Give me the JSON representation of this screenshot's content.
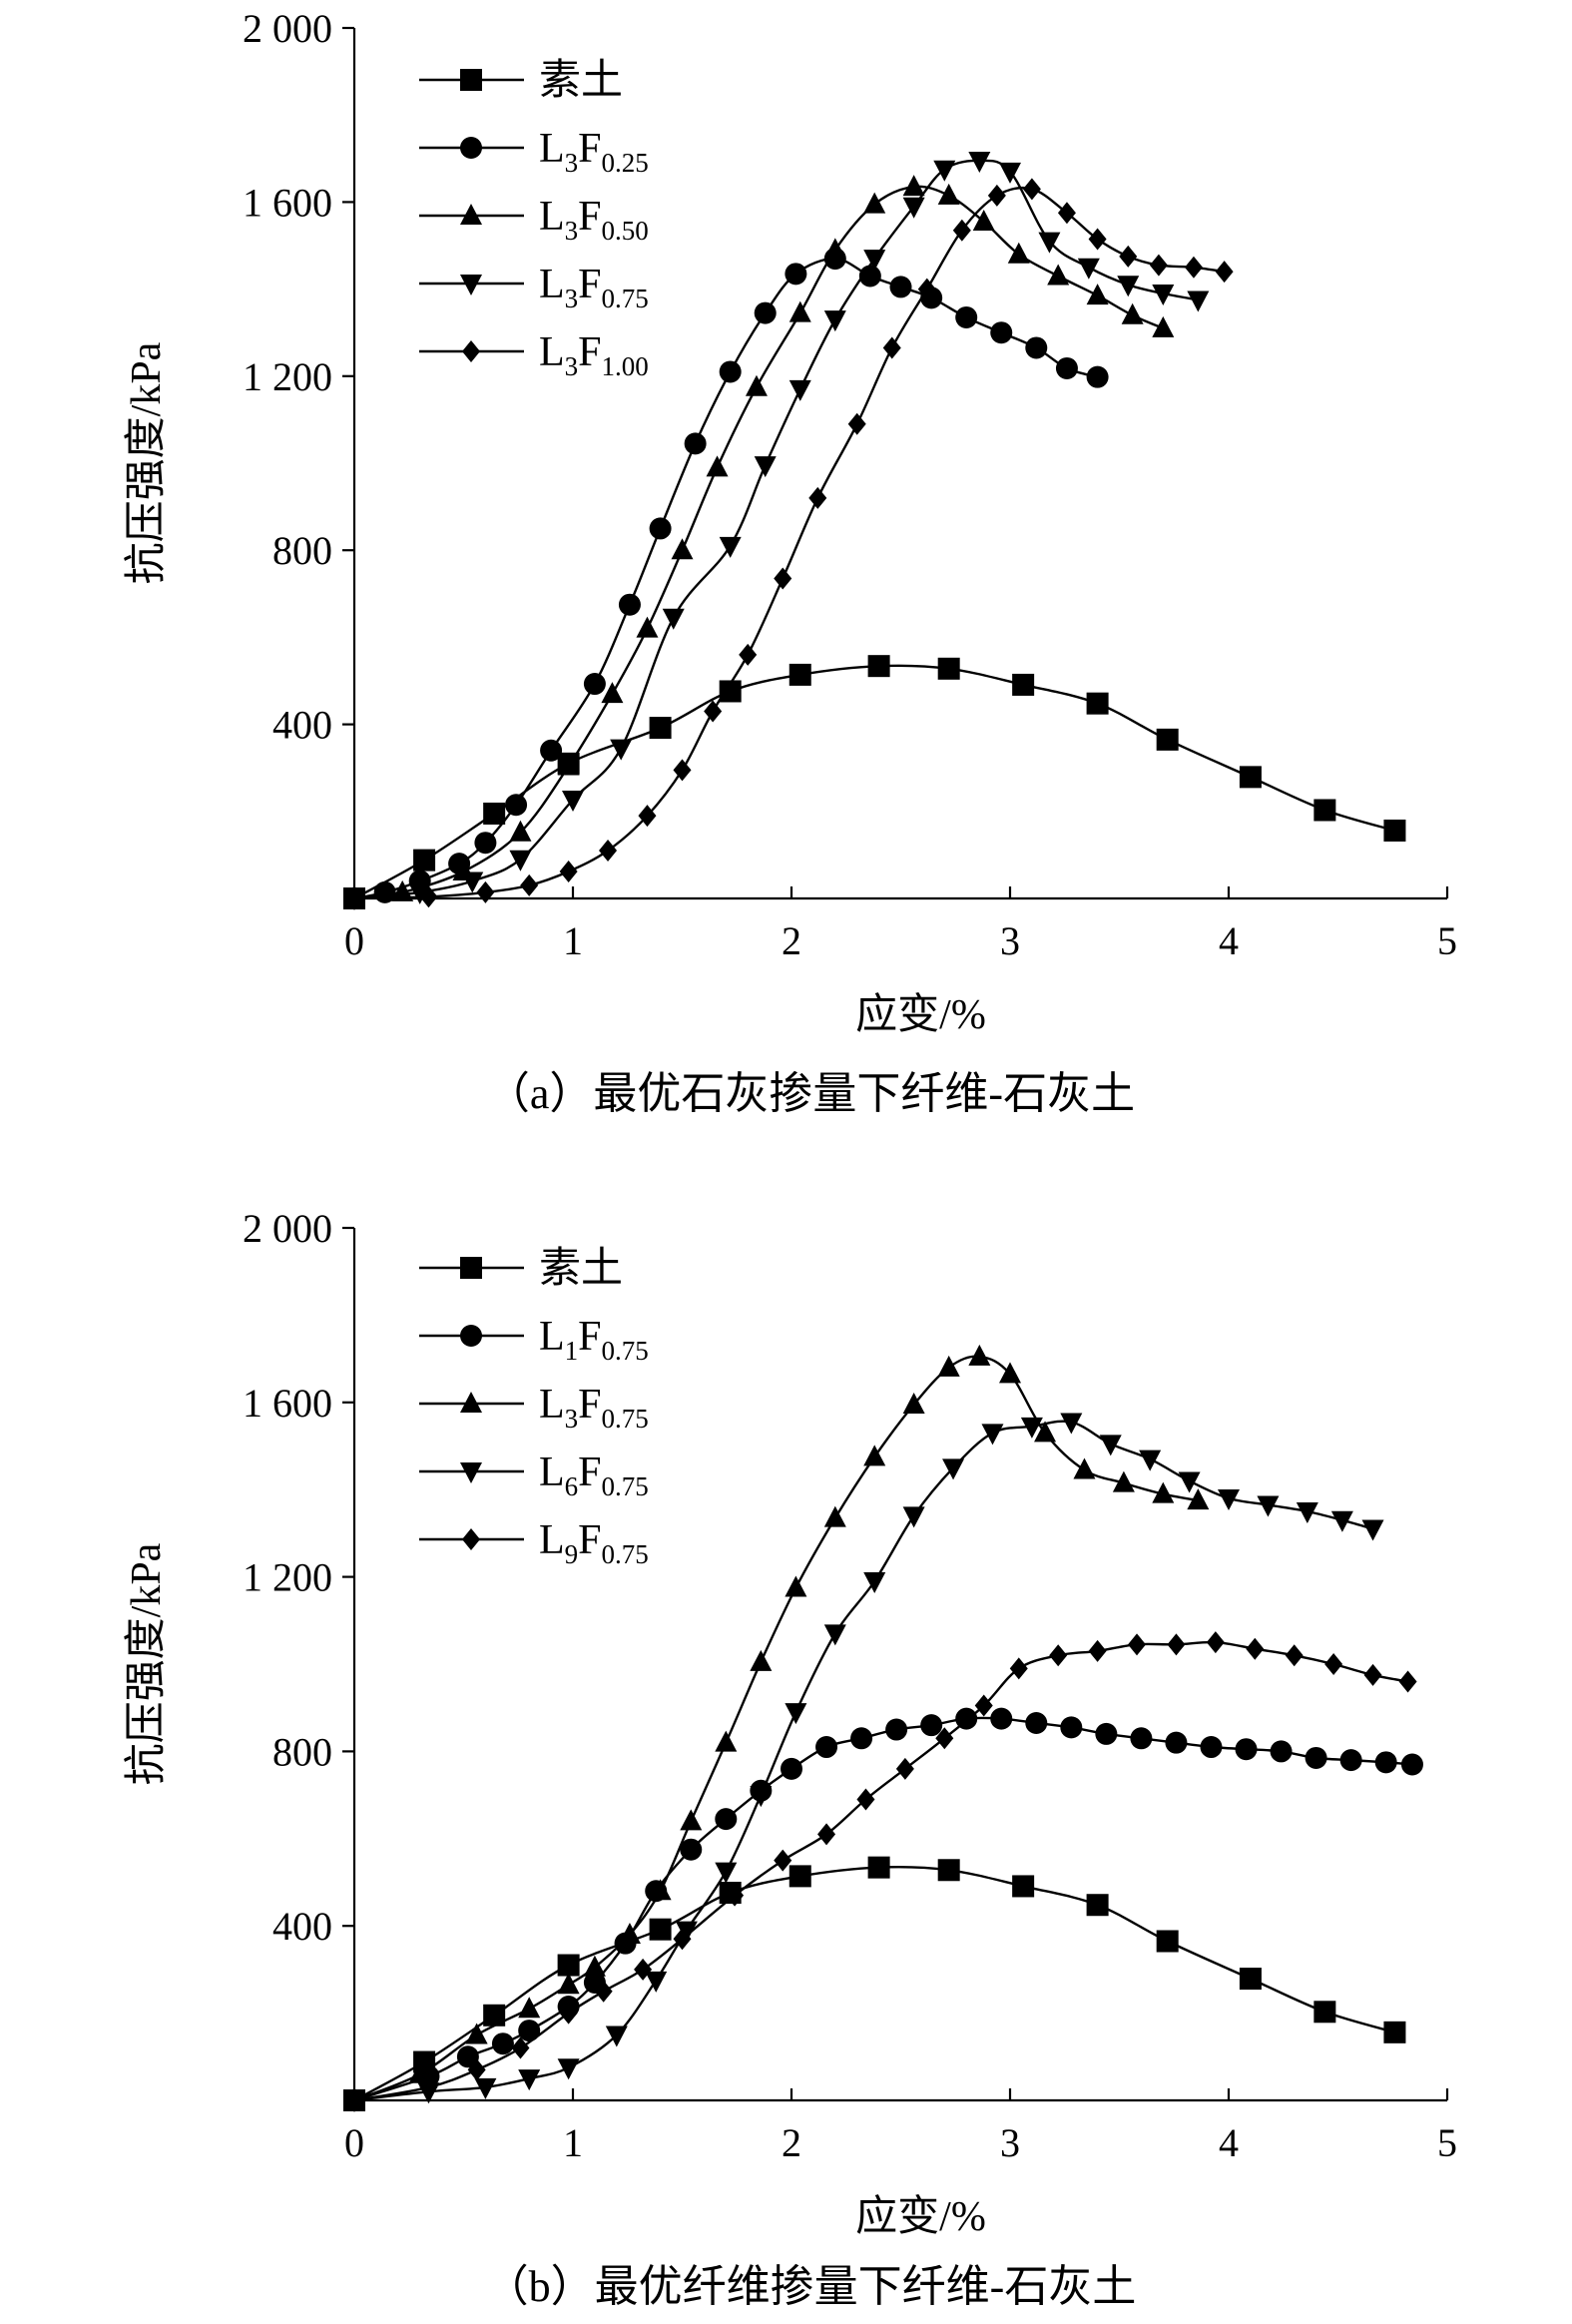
{
  "figure": {
    "chart_data": [
      {
        "type": "line",
        "caption": "（a）最优石灰掺量下纤维-石灰土",
        "xlabel": "应变/%",
        "ylabel": "抗压强度/kPa",
        "xlim": [
          0,
          5
        ],
        "ylim": [
          0,
          2000
        ],
        "xticks": [
          0,
          1,
          2,
          3,
          4,
          5
        ],
        "yticks": [
          400,
          800,
          1200,
          1600,
          2000
        ],
        "xtick_labels": [
          "0",
          "1",
          "2",
          "3",
          "4",
          "5"
        ],
        "ytick_labels": [
          "400",
          "800",
          "1 200",
          "1 600",
          "2 000"
        ],
        "grid": false,
        "legend_position": "top-left",
        "series": [
          {
            "name": "素土",
            "legend": {
              "base": "素土",
              "sub1": "",
              "mid": "",
              "sub2": ""
            },
            "marker": "square",
            "x": [
              0,
              0.32,
              0.64,
              0.98,
              1.4,
              1.72,
              2.04,
              2.4,
              2.72,
              3.06,
              3.4,
              3.72,
              4.1,
              4.44,
              4.76
            ],
            "y": [
              0,
              88,
              195,
              310,
              392,
              476,
              514,
              534,
              528,
              491,
              448,
              365,
              279,
              203,
              156
            ]
          },
          {
            "name": "L3F0.25",
            "legend": {
              "base": "L",
              "sub1": "3",
              "mid": "F",
              "sub2": "0.25"
            },
            "marker": "circle",
            "x": [
              0,
              0.14,
              0.3,
              0.48,
              0.6,
              0.74,
              0.9,
              1.1,
              1.26,
              1.4,
              1.56,
              1.72,
              1.88,
              2.02,
              2.2,
              2.36,
              2.5,
              2.64,
              2.8,
              2.96,
              3.12,
              3.26,
              3.4
            ],
            "y": [
              0,
              14,
              40,
              80,
              128,
              215,
              340,
              493,
              675,
              850,
              1045,
              1210,
              1345,
              1435,
              1470,
              1430,
              1405,
              1380,
              1335,
              1300,
              1265,
              1218,
              1198
            ]
          },
          {
            "name": "L3F0.50",
            "legend": {
              "base": "L",
              "sub1": "3",
              "mid": "F",
              "sub2": "0.50"
            },
            "marker": "triangle-up",
            "x": [
              0,
              0.22,
              0.5,
              0.76,
              0.98,
              1.18,
              1.34,
              1.5,
              1.66,
              1.84,
              2.04,
              2.2,
              2.38,
              2.56,
              2.72,
              2.88,
              3.04,
              3.22,
              3.4,
              3.56,
              3.7
            ],
            "y": [
              0,
              14,
              62,
              152,
              304,
              470,
              620,
              800,
              990,
              1175,
              1345,
              1490,
              1595,
              1635,
              1615,
              1555,
              1480,
              1430,
              1385,
              1340,
              1310
            ]
          },
          {
            "name": "L3F0.75",
            "legend": {
              "base": "L",
              "sub1": "3",
              "mid": "F",
              "sub2": "0.75"
            },
            "marker": "triangle-down",
            "x": [
              0,
              0.3,
              0.54,
              0.76,
              1.0,
              1.22,
              1.46,
              1.72,
              1.88,
              2.04,
              2.2,
              2.38,
              2.56,
              2.7,
              2.86,
              3.0,
              3.18,
              3.36,
              3.54,
              3.7,
              3.86
            ],
            "y": [
              0,
              14,
              40,
              90,
              227,
              345,
              645,
              810,
              995,
              1170,
              1330,
              1470,
              1590,
              1675,
              1695,
              1670,
              1510,
              1450,
              1410,
              1390,
              1375
            ]
          },
          {
            "name": "L3F1.00",
            "legend": {
              "base": "L",
              "sub1": "3",
              "mid": "F",
              "sub2": "1.00"
            },
            "marker": "diamond",
            "x": [
              0,
              0.34,
              0.6,
              0.8,
              0.98,
              1.16,
              1.34,
              1.5,
              1.64,
              1.8,
              1.96,
              2.12,
              2.3,
              2.46,
              2.62,
              2.78,
              2.94,
              3.1,
              3.26,
              3.4,
              3.54,
              3.68,
              3.84,
              3.98
            ],
            "y": [
              0,
              4,
              14,
              30,
              62,
              110,
              190,
              295,
              430,
              560,
              735,
              920,
              1090,
              1265,
              1400,
              1535,
              1615,
              1630,
              1575,
              1515,
              1475,
              1455,
              1450,
              1440
            ]
          }
        ]
      },
      {
        "type": "line",
        "caption": "（b）最优纤维掺量下纤维-石灰土",
        "xlabel": "应变/%",
        "ylabel": "抗压强度/kPa",
        "xlim": [
          0,
          5
        ],
        "ylim": [
          0,
          2000
        ],
        "xticks": [
          0,
          1,
          2,
          3,
          4,
          5
        ],
        "yticks": [
          400,
          800,
          1200,
          1600,
          2000
        ],
        "xtick_labels": [
          "0",
          "1",
          "2",
          "3",
          "4",
          "5"
        ],
        "ytick_labels": [
          "400",
          "800",
          "1 200",
          "1 600",
          "2 000"
        ],
        "grid": false,
        "legend_position": "top-left",
        "series": [
          {
            "name": "素土",
            "legend": {
              "base": "素土",
              "sub1": "",
              "mid": "",
              "sub2": ""
            },
            "marker": "square",
            "x": [
              0,
              0.32,
              0.64,
              0.98,
              1.4,
              1.72,
              2.04,
              2.4,
              2.72,
              3.06,
              3.4,
              3.72,
              4.1,
              4.44,
              4.76
            ],
            "y": [
              0,
              88,
              195,
              310,
              392,
              476,
              514,
              534,
              528,
              491,
              448,
              365,
              279,
              203,
              156
            ]
          },
          {
            "name": "L1F0.75",
            "legend": {
              "base": "L",
              "sub1": "1",
              "mid": "F",
              "sub2": "0.75"
            },
            "marker": "circle",
            "x": [
              0,
              0.34,
              0.52,
              0.68,
              0.8,
              0.98,
              1.1,
              1.24,
              1.38,
              1.54,
              1.7,
              1.86,
              2.0,
              2.16,
              2.32,
              2.48,
              2.64,
              2.8,
              2.96,
              3.12,
              3.28,
              3.44,
              3.6,
              3.76,
              3.92,
              4.08,
              4.24,
              4.4,
              4.56,
              4.72,
              4.84
            ],
            "y": [
              0,
              55,
              100,
              130,
              160,
              215,
              270,
              360,
              480,
              575,
              645,
              710,
              760,
              810,
              830,
              850,
              860,
              875,
              875,
              865,
              855,
              840,
              830,
              820,
              810,
              805,
              800,
              785,
              780,
              775,
              770
            ]
          },
          {
            "name": "L3F0.75",
            "legend": {
              "base": "L",
              "sub1": "3",
              "mid": "F",
              "sub2": "0.75"
            },
            "marker": "triangle-up",
            "x": [
              0,
              0.3,
              0.56,
              0.8,
              0.98,
              1.1,
              1.26,
              1.4,
              1.54,
              1.7,
              1.86,
              2.02,
              2.2,
              2.38,
              2.56,
              2.72,
              2.86,
              3.0,
              3.16,
              3.34,
              3.52,
              3.7,
              3.86
            ],
            "y": [
              0,
              60,
              150,
              210,
              265,
              305,
              380,
              480,
              640,
              820,
              1005,
              1175,
              1335,
              1475,
              1595,
              1680,
              1705,
              1665,
              1530,
              1445,
              1415,
              1390,
              1375
            ]
          },
          {
            "name": "L6F0.75",
            "legend": {
              "base": "L",
              "sub1": "6",
              "mid": "F",
              "sub2": "0.75"
            },
            "marker": "triangle-down",
            "x": [
              0,
              0.34,
              0.6,
              0.8,
              0.98,
              1.2,
              1.38,
              1.52,
              1.7,
              1.86,
              2.02,
              2.2,
              2.38,
              2.56,
              2.74,
              2.92,
              3.1,
              3.28,
              3.46,
              3.64,
              3.82,
              4.0,
              4.18,
              4.36,
              4.52,
              4.66
            ],
            "y": [
              0,
              20,
              30,
              50,
              75,
              150,
              275,
              390,
              525,
              700,
              890,
              1070,
              1190,
              1340,
              1450,
              1530,
              1545,
              1555,
              1505,
              1470,
              1420,
              1380,
              1365,
              1350,
              1330,
              1310
            ]
          },
          {
            "name": "L9F0.75",
            "legend": {
              "base": "L",
              "sub1": "9",
              "mid": "F",
              "sub2": "0.75"
            },
            "marker": "diamond",
            "x": [
              0,
              0.34,
              0.56,
              0.76,
              0.98,
              1.14,
              1.32,
              1.5,
              1.74,
              1.96,
              2.16,
              2.34,
              2.52,
              2.7,
              2.88,
              3.04,
              3.22,
              3.4,
              3.58,
              3.76,
              3.94,
              4.12,
              4.3,
              4.48,
              4.66,
              4.82
            ],
            "y": [
              0,
              30,
              70,
              120,
              200,
              250,
              300,
              370,
              470,
              550,
              610,
              690,
              760,
              830,
              905,
              990,
              1020,
              1030,
              1045,
              1045,
              1050,
              1035,
              1020,
              1000,
              975,
              960
            ]
          }
        ]
      }
    ]
  }
}
